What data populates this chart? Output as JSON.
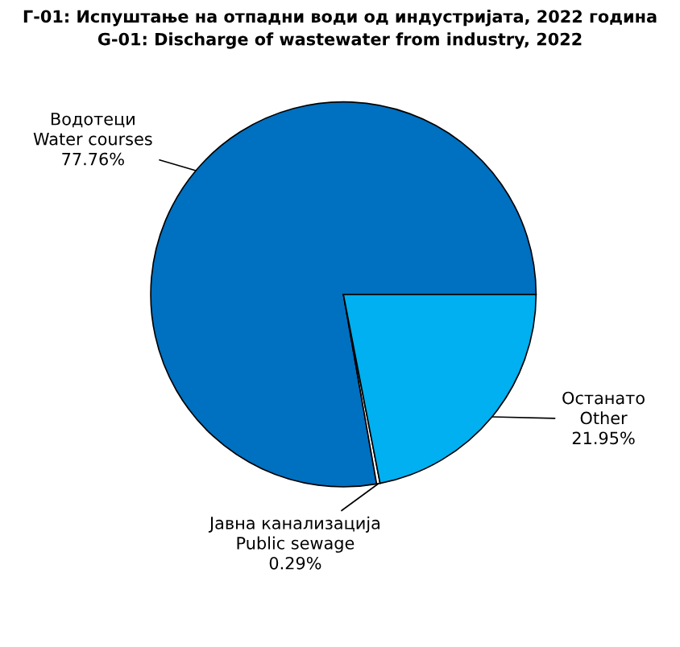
{
  "chart_data": {
    "type": "pie",
    "title": "Г-01: Испуштање на отпадни води од индустријата, 2022 година\nG-01: Discharge of wastewater from industry, 2022",
    "categories": [
      "Водотеци\nWater courses",
      "Јавна канализација\nPublic sewage",
      "Останато\nOther"
    ],
    "values": [
      77.76,
      0.29,
      21.95
    ],
    "colors": [
      "#0070c0",
      "#ffffff",
      "#00b0f0"
    ],
    "value_labels": [
      "77.76%",
      "0.29%",
      "21.95%"
    ]
  }
}
